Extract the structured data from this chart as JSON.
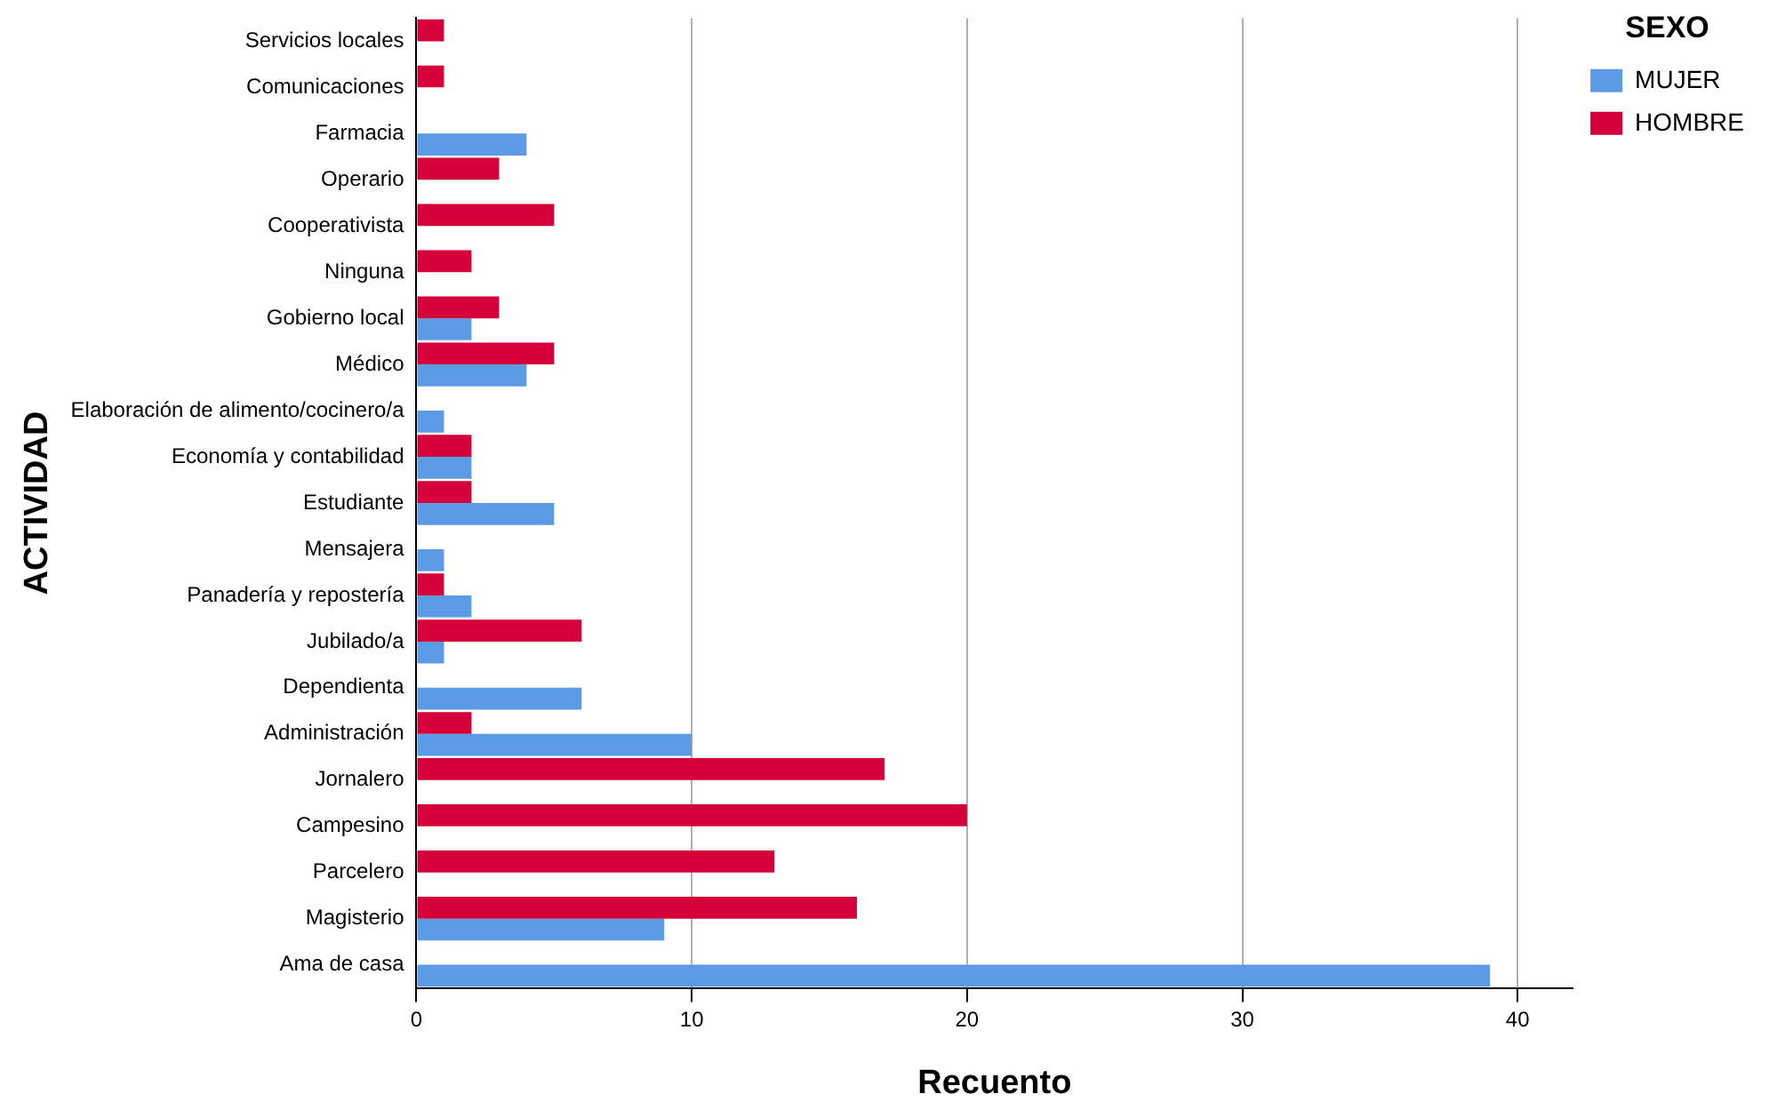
{
  "chart_data": {
    "type": "bar",
    "orientation": "horizontal",
    "xlabel": "Recuento",
    "ylabel": "ACTIVIDAD",
    "legend_title": "SEXO",
    "legend": "top right",
    "grid": "x",
    "categories": [
      "Servicios locales",
      "Comunicaciones",
      "Farmacia",
      "Operario",
      "Cooperativista",
      "Ninguna",
      "Gobierno local",
      "Médico",
      "Elaboración de alimento/cocinero/a",
      "Economía y contabilidad",
      "Estudiante",
      "Mensajera",
      "Panadería y repostería",
      "Jubilado/a",
      "Dependienta",
      "Administración",
      "Jornalero",
      "Campesino",
      "Parcelero",
      "Magisterio",
      "Ama de casa"
    ],
    "series": [
      {
        "name": "MUJER",
        "color": "#5b9be6",
        "values": [
          null,
          null,
          4,
          null,
          null,
          null,
          2,
          4,
          1,
          2,
          5,
          1,
          2,
          1,
          6,
          10,
          null,
          null,
          null,
          9,
          39
        ]
      },
      {
        "name": "HOMBRE",
        "color": "#d5003a",
        "values": [
          1,
          1,
          null,
          3,
          5,
          2,
          3,
          5,
          null,
          2,
          2,
          null,
          1,
          6,
          null,
          2,
          17,
          20,
          13,
          16,
          null
        ]
      }
    ],
    "xlim": [
      0,
      42
    ],
    "xticks": [
      0,
      10,
      20,
      30,
      40
    ]
  }
}
